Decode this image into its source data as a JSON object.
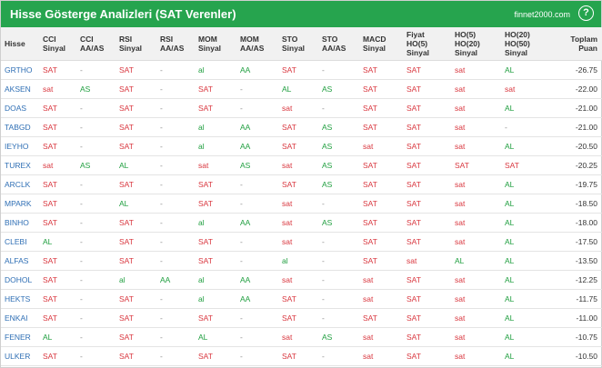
{
  "header": {
    "title": "Hisse Gösterge Analizleri (SAT Verenler)",
    "site": "finnet2000.com",
    "help": "?"
  },
  "table": {
    "columns": [
      [
        "Hisse"
      ],
      [
        "CCI",
        "Sinyal"
      ],
      [
        "CCI",
        "AA/AS"
      ],
      [
        "RSI",
        "Sinyal"
      ],
      [
        "RSI",
        "AA/AS"
      ],
      [
        "MOM",
        "Sinyal"
      ],
      [
        "MOM",
        "AA/AS"
      ],
      [
        "STO",
        "Sinyal"
      ],
      [
        "STO",
        "AA/AS"
      ],
      [
        "MACD",
        "Sinyal"
      ],
      [
        "Fiyat",
        "HO(5)",
        "Sinyal"
      ],
      [
        "HO(5)",
        "HO(20)",
        "Sinyal"
      ],
      [
        "HO(20)",
        "HO(50)",
        "Sinyal"
      ],
      [
        "Toplam",
        "Puan"
      ]
    ],
    "rows": [
      [
        "GRTHO",
        "SAT",
        "-",
        "SAT",
        "-",
        "al",
        "AA",
        "SAT",
        "-",
        "SAT",
        "SAT",
        "sat",
        "AL",
        "-26.75"
      ],
      [
        "AKSEN",
        "sat",
        "AS",
        "SAT",
        "-",
        "SAT",
        "-",
        "AL",
        "AS",
        "SAT",
        "SAT",
        "sat",
        "sat",
        "-22.00"
      ],
      [
        "DOAS",
        "SAT",
        "-",
        "SAT",
        "-",
        "SAT",
        "-",
        "sat",
        "-",
        "SAT",
        "SAT",
        "sat",
        "AL",
        "-21.00"
      ],
      [
        "TABGD",
        "SAT",
        "-",
        "SAT",
        "-",
        "al",
        "AA",
        "SAT",
        "AS",
        "SAT",
        "SAT",
        "sat",
        "-",
        "-21.00"
      ],
      [
        "IEYHO",
        "SAT",
        "-",
        "SAT",
        "-",
        "al",
        "AA",
        "SAT",
        "AS",
        "sat",
        "SAT",
        "sat",
        "AL",
        "-20.50"
      ],
      [
        "TUREX",
        "sat",
        "AS",
        "AL",
        "-",
        "sat",
        "AS",
        "sat",
        "AS",
        "SAT",
        "SAT",
        "SAT",
        "SAT",
        "-20.25"
      ],
      [
        "ARCLK",
        "SAT",
        "-",
        "SAT",
        "-",
        "SAT",
        "-",
        "SAT",
        "AS",
        "SAT",
        "SAT",
        "sat",
        "AL",
        "-19.75"
      ],
      [
        "MPARK",
        "SAT",
        "-",
        "AL",
        "-",
        "SAT",
        "-",
        "sat",
        "-",
        "SAT",
        "SAT",
        "sat",
        "AL",
        "-18.50"
      ],
      [
        "BINHO",
        "SAT",
        "-",
        "SAT",
        "-",
        "al",
        "AA",
        "sat",
        "AS",
        "SAT",
        "SAT",
        "sat",
        "AL",
        "-18.00"
      ],
      [
        "CLEBI",
        "AL",
        "-",
        "SAT",
        "-",
        "SAT",
        "-",
        "sat",
        "-",
        "SAT",
        "SAT",
        "sat",
        "AL",
        "-17.50"
      ],
      [
        "ALFAS",
        "SAT",
        "-",
        "SAT",
        "-",
        "SAT",
        "-",
        "al",
        "-",
        "SAT",
        "sat",
        "AL",
        "AL",
        "-13.50"
      ],
      [
        "DOHOL",
        "SAT",
        "-",
        "al",
        "AA",
        "al",
        "AA",
        "sat",
        "-",
        "sat",
        "SAT",
        "sat",
        "AL",
        "-12.25"
      ],
      [
        "HEKTS",
        "SAT",
        "-",
        "SAT",
        "-",
        "al",
        "AA",
        "SAT",
        "-",
        "sat",
        "SAT",
        "sat",
        "AL",
        "-11.75"
      ],
      [
        "ENKAI",
        "SAT",
        "-",
        "SAT",
        "-",
        "SAT",
        "-",
        "SAT",
        "-",
        "SAT",
        "SAT",
        "sat",
        "AL",
        "-11.00"
      ],
      [
        "FENER",
        "AL",
        "-",
        "SAT",
        "-",
        "AL",
        "-",
        "sat",
        "AS",
        "sat",
        "SAT",
        "sat",
        "AL",
        "-10.75"
      ],
      [
        "ULKER",
        "SAT",
        "-",
        "SAT",
        "-",
        "SAT",
        "-",
        "SAT",
        "-",
        "sat",
        "SAT",
        "sat",
        "AL",
        "-10.50"
      ]
    ]
  }
}
